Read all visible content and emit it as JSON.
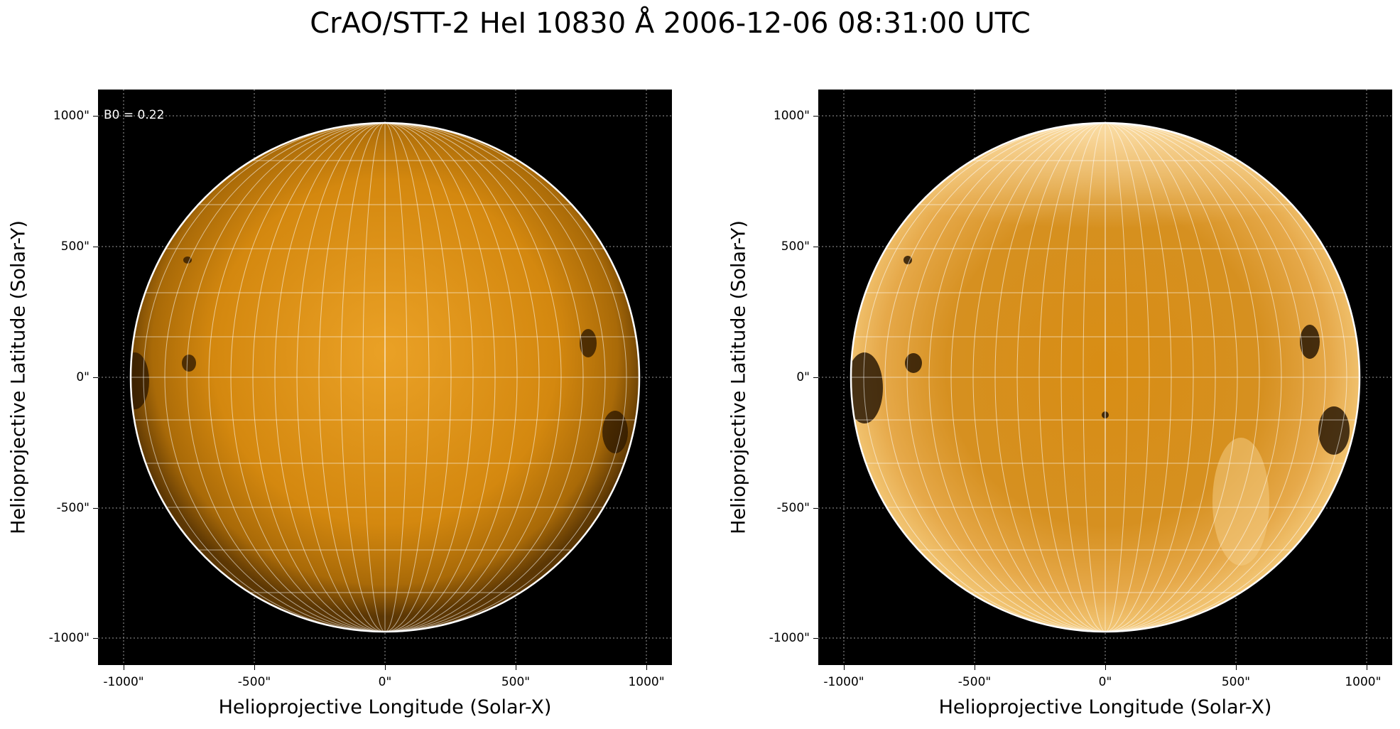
{
  "title": "CrAO/STT-2 HeI 10830 Å 2006-12-06 08:31:00 UTC",
  "panels": [
    {
      "b0_label": "B0 = 0.22",
      "xlabel": "Helioprojective Longitude (Solar-X)",
      "ylabel": "Helioprojective Latitude (Solar-Y)",
      "xticks": [
        "-1000\"",
        "-500\"",
        "0\"",
        "500\"",
        "1000\""
      ],
      "yticks": [
        "1000\"",
        "500\"",
        "0\"",
        "-500\"",
        "-1000\""
      ]
    },
    {
      "xlabel": "Helioprojective Longitude (Solar-X)",
      "ylabel": "Helioprojective Latitude (Solar-Y)",
      "xticks": [
        "-1000\"",
        "-500\"",
        "0\"",
        "500\"",
        "1000\""
      ],
      "yticks": [
        "1000\"",
        "500\"",
        "0\"",
        "-500\"",
        "-1000\""
      ]
    }
  ],
  "colors": {
    "disk_left_center": "#e59a1c",
    "disk_left_edge": "#7a4a06",
    "disk_right_center": "#d99018",
    "disk_right_edge": "#f2c36a",
    "background": "#000000",
    "grid": "#ffffff"
  }
}
